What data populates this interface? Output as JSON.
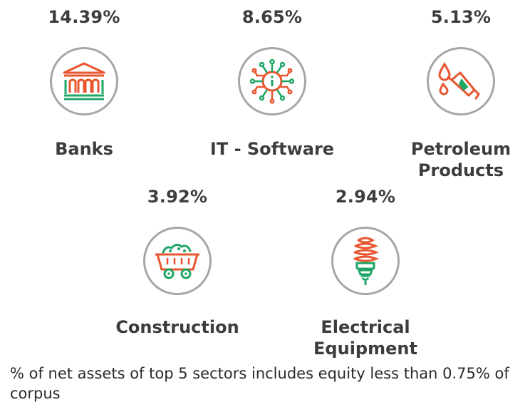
{
  "sectors": [
    {
      "name": "Banks",
      "percent": "14.39%",
      "icon": "bank-building-icon"
    },
    {
      "name": "IT - Software",
      "percent": "8.65%",
      "icon": "circuit-chip-icon"
    },
    {
      "name_line1": "Petroleum",
      "name_line2": "Products",
      "percent": "5.13%",
      "icon": "fuel-nozzle-icon"
    },
    {
      "name": "Construction",
      "percent": "3.92%",
      "icon": "mine-cart-icon"
    },
    {
      "name_line1": "Electrical",
      "name_line2": "Equipment",
      "percent": "2.94%",
      "icon": "cfl-bulb-icon"
    }
  ],
  "footnote": "% of net assets of top 5 sectors includes equity less than 0.75% of corpus",
  "colors": {
    "orange": "#e8552f",
    "green": "#1fa565",
    "circle_border": "#a6a6a6",
    "text": "#3d3d3d"
  }
}
